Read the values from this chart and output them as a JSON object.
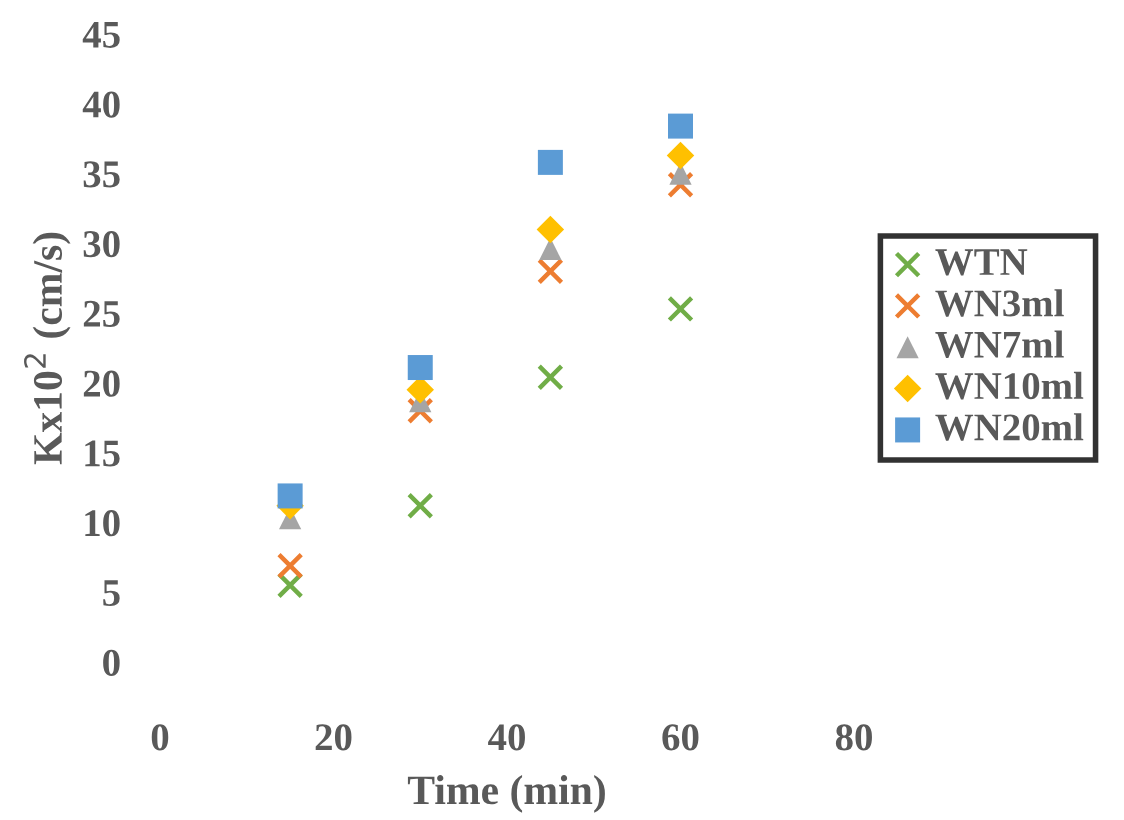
{
  "chart_data": {
    "type": "scatter",
    "xlabel": "Time (min)",
    "ylabel": "Kx10$^{2}$ (cm/s)",
    "x": [
      15,
      30,
      45,
      60
    ],
    "series": [
      {
        "name": "WTN",
        "color": "#70ad47",
        "marker": "cross",
        "values": [
          5.5,
          11.2,
          20.4,
          25.3
        ]
      },
      {
        "name": "WN3ml",
        "color": "#ed7d31",
        "marker": "cross",
        "values": [
          6.9,
          18.0,
          28.0,
          34.2
        ]
      },
      {
        "name": "WN7ml",
        "color": "#a5a5a5",
        "marker": "triangle",
        "values": [
          10.3,
          18.7,
          29.6,
          35.0
        ]
      },
      {
        "name": "WN10ml",
        "color": "#ffc000",
        "marker": "diamond",
        "values": [
          11.2,
          19.5,
          31.0,
          36.3
        ]
      },
      {
        "name": "WN20ml",
        "color": "#5b9bd5",
        "marker": "square",
        "values": [
          11.9,
          21.1,
          35.8,
          38.4
        ]
      }
    ],
    "xlim": [
      0,
      80
    ],
    "xticks": [
      0,
      20,
      40,
      60,
      80
    ],
    "ylim": [
      0,
      45
    ],
    "yticks": [
      0,
      5,
      10,
      15,
      20,
      25,
      30,
      35,
      40,
      45
    ],
    "grid": false,
    "legend": "right"
  }
}
